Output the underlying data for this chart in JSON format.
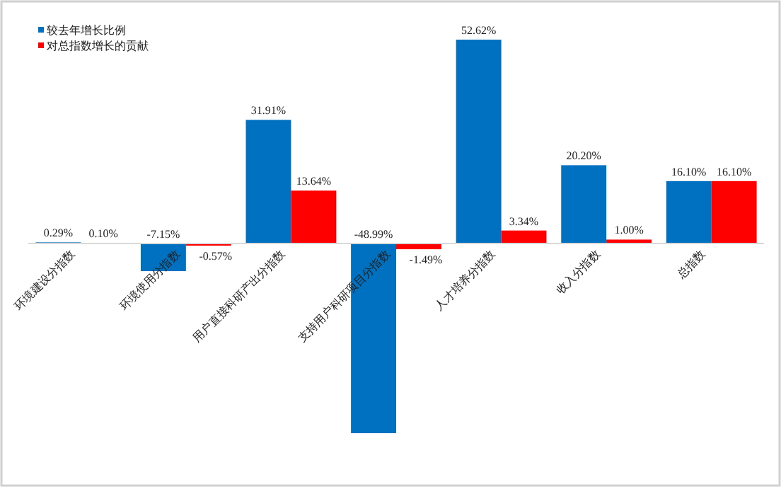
{
  "chart_data": {
    "type": "bar",
    "categories": [
      "环境建设分指数",
      "环境使用分指数",
      "用户直接科研产出分指数",
      "支持用户科研项目分指数",
      "人才培养分指数",
      "收入分指数",
      "总指数"
    ],
    "series": [
      {
        "name": "较去年增长比例",
        "color": "#0070c0",
        "values": [
          0.29,
          -7.15,
          31.91,
          -48.99,
          52.62,
          20.2,
          16.1
        ],
        "value_labels": [
          "0.29%",
          "-7.15%",
          "31.91%",
          "-48.99%",
          "52.62%",
          "20.20%",
          "16.10%"
        ]
      },
      {
        "name": "对总指数增长的贡献",
        "color": "#ff0000",
        "values": [
          0.1,
          -0.57,
          13.64,
          -1.49,
          3.34,
          1.0,
          16.1
        ],
        "value_labels": [
          "0.10%",
          "-0.57%",
          "13.64%",
          "-1.49%",
          "3.34%",
          "1.00%",
          "16.10%"
        ]
      }
    ],
    "legend": "top left"
  }
}
